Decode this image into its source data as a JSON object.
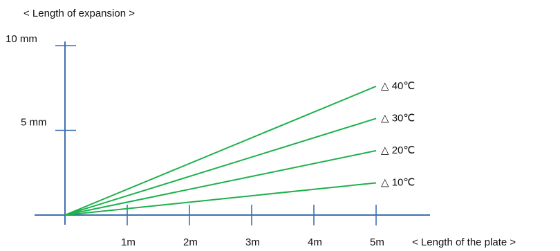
{
  "chart_data": {
    "type": "line",
    "title": "< Length of expansion >",
    "xlabel": "< Length of the plate >",
    "ylabel": "",
    "xlim": [
      0,
      5
    ],
    "ylim": [
      0,
      10
    ],
    "x_ticks": [
      1,
      2,
      3,
      4,
      5
    ],
    "x_tick_labels": [
      "1m",
      "2m",
      "3m",
      "4m",
      "5m"
    ],
    "y_ticks": [
      5,
      10
    ],
    "y_tick_labels": [
      "5 mm",
      "10 mm"
    ],
    "grid": false,
    "line_color": "#1db14b",
    "axis_color": "#3e6fb0",
    "series": [
      {
        "name": "△ 40℃",
        "x": [
          0,
          5
        ],
        "y": [
          0,
          7.6
        ]
      },
      {
        "name": "△ 30℃",
        "x": [
          0,
          5
        ],
        "y": [
          0,
          5.7
        ]
      },
      {
        "name": "△ 20℃",
        "x": [
          0,
          5
        ],
        "y": [
          0,
          3.8
        ]
      },
      {
        "name": "△ 10℃",
        "x": [
          0,
          5
        ],
        "y": [
          0,
          1.9
        ]
      }
    ]
  }
}
